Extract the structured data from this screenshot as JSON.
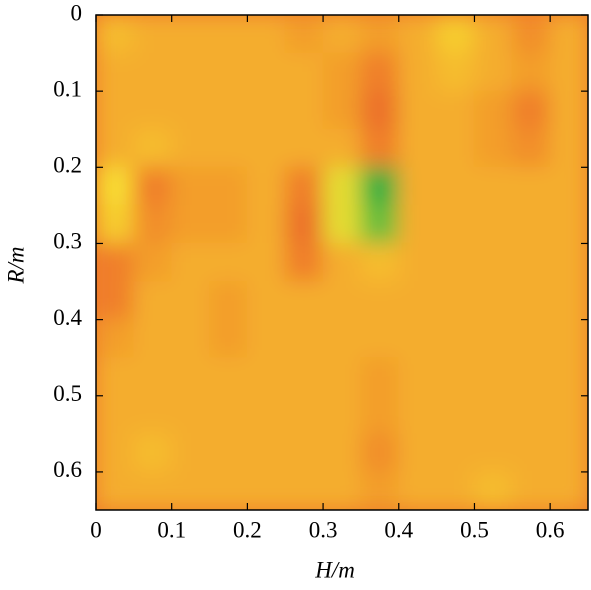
{
  "chart_data": {
    "type": "heatmap",
    "xlabel": "H/m",
    "ylabel": "R/m",
    "x": [
      0.025,
      0.075,
      0.125,
      0.175,
      0.225,
      0.275,
      0.325,
      0.375,
      0.425,
      0.475,
      0.525,
      0.575,
      0.625
    ],
    "y": [
      0.025,
      0.075,
      0.125,
      0.175,
      0.225,
      0.275,
      0.325,
      0.375,
      0.425,
      0.475,
      0.525,
      0.575,
      0.625
    ],
    "z": [
      [
        0.55,
        0.5,
        0.5,
        0.5,
        0.5,
        0.45,
        0.5,
        0.45,
        0.5,
        0.6,
        0.5,
        0.4,
        0.5
      ],
      [
        0.5,
        0.5,
        0.5,
        0.5,
        0.5,
        0.5,
        0.45,
        0.35,
        0.5,
        0.55,
        0.5,
        0.45,
        0.5
      ],
      [
        0.5,
        0.5,
        0.5,
        0.5,
        0.5,
        0.5,
        0.45,
        0.3,
        0.5,
        0.5,
        0.45,
        0.35,
        0.5
      ],
      [
        0.5,
        0.55,
        0.5,
        0.5,
        0.5,
        0.5,
        0.5,
        0.35,
        0.5,
        0.5,
        0.45,
        0.4,
        0.5
      ],
      [
        0.65,
        0.35,
        0.45,
        0.45,
        0.5,
        0.35,
        0.7,
        1,
        0.5,
        0.5,
        0.5,
        0.5,
        0.5
      ],
      [
        0.6,
        0.4,
        0.45,
        0.45,
        0.5,
        0.3,
        0.7,
        0.9,
        0.5,
        0.5,
        0.5,
        0.5,
        0.5
      ],
      [
        0.35,
        0.45,
        0.5,
        0.5,
        0.5,
        0.35,
        0.5,
        0.55,
        0.5,
        0.5,
        0.5,
        0.5,
        0.5
      ],
      [
        0.35,
        0.5,
        0.5,
        0.45,
        0.5,
        0.5,
        0.5,
        0.5,
        0.5,
        0.5,
        0.5,
        0.5,
        0.5
      ],
      [
        0.45,
        0.5,
        0.5,
        0.45,
        0.5,
        0.5,
        0.5,
        0.5,
        0.5,
        0.5,
        0.5,
        0.5,
        0.5
      ],
      [
        0.5,
        0.5,
        0.5,
        0.5,
        0.5,
        0.5,
        0.5,
        0.45,
        0.5,
        0.5,
        0.5,
        0.5,
        0.5
      ],
      [
        0.5,
        0.5,
        0.5,
        0.5,
        0.5,
        0.5,
        0.5,
        0.45,
        0.5,
        0.5,
        0.5,
        0.5,
        0.5
      ],
      [
        0.5,
        0.55,
        0.5,
        0.5,
        0.5,
        0.5,
        0.5,
        0.4,
        0.5,
        0.5,
        0.5,
        0.5,
        0.5
      ],
      [
        0.5,
        0.5,
        0.5,
        0.5,
        0.5,
        0.5,
        0.5,
        0.45,
        0.5,
        0.5,
        0.55,
        0.5,
        0.5
      ]
    ],
    "zlim": [
      0,
      1
    ],
    "colormap": [
      "#c8201c",
      "#f07a2a",
      "#f8e030",
      "#30b040"
    ],
    "xlim": [
      0,
      0.65
    ],
    "ylim": [
      0.65,
      0
    ],
    "xticks": [
      0,
      0.1,
      0.2,
      0.3,
      0.4,
      0.5,
      0.6
    ],
    "yticks": [
      0,
      0.1,
      0.2,
      0.3,
      0.4,
      0.5,
      0.6
    ]
  }
}
